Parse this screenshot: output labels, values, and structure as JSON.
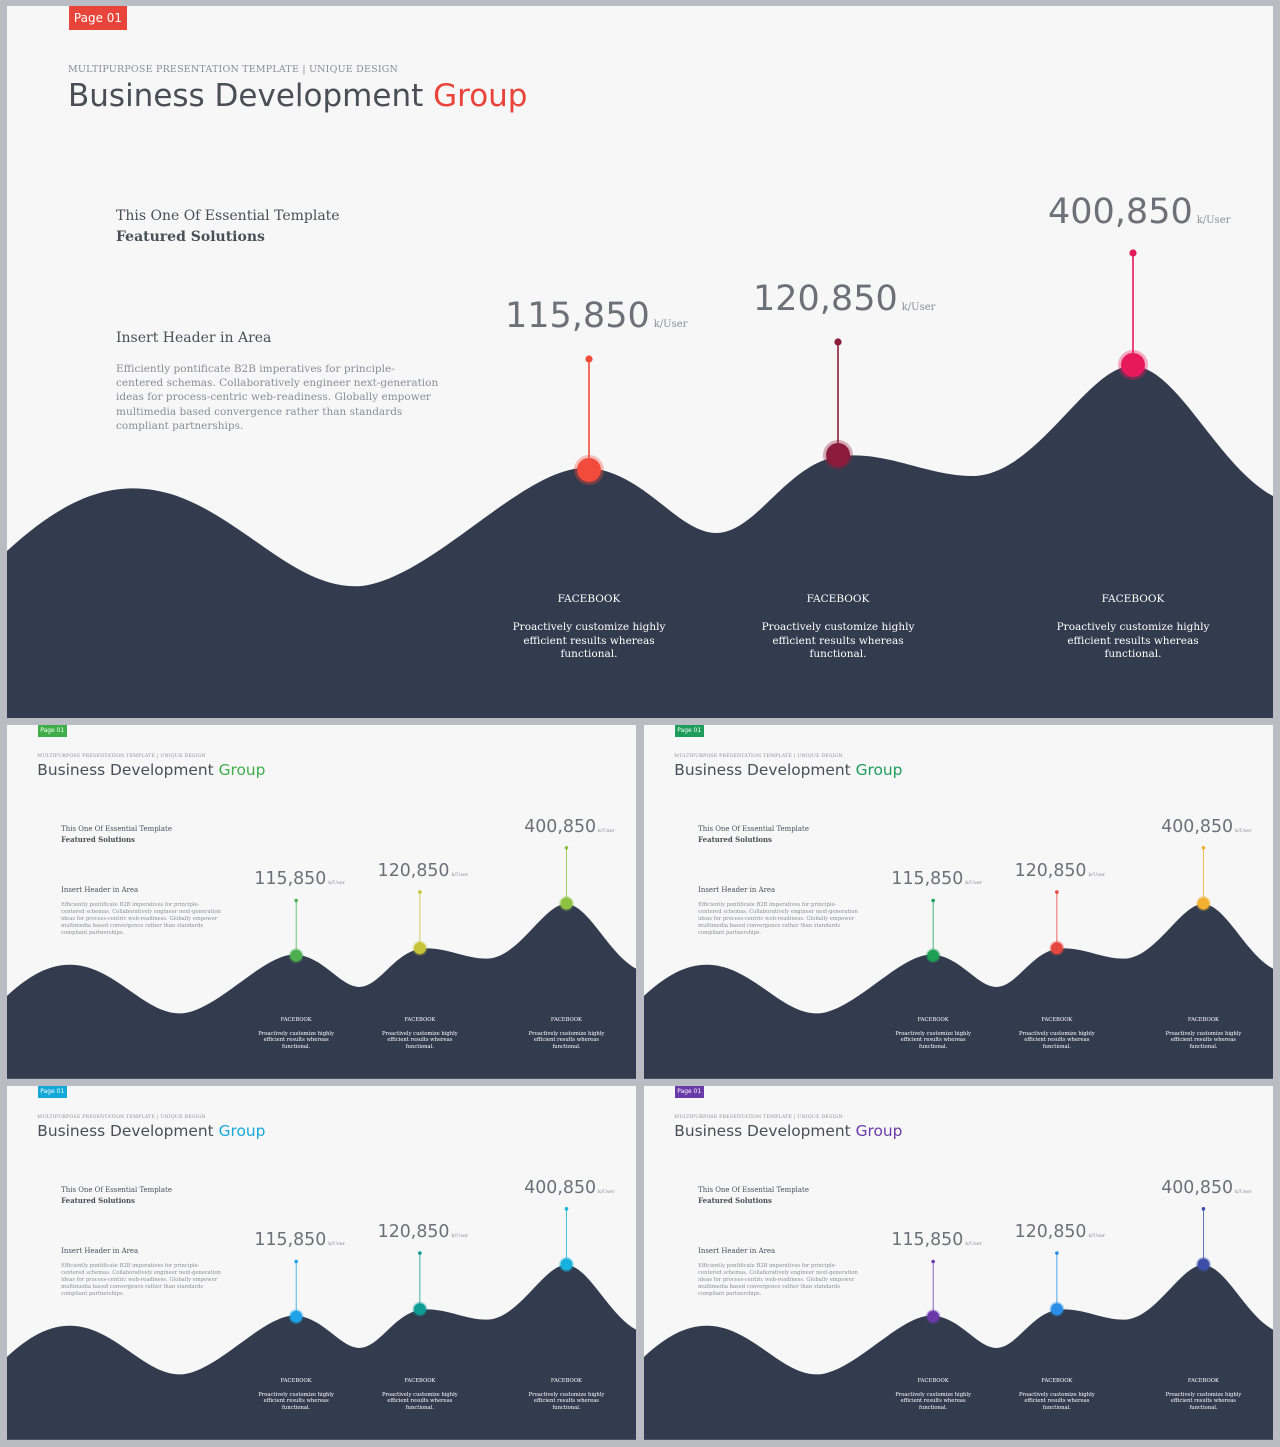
{
  "slides": [
    {
      "page_label": "Page 01",
      "subtitle": "MULTIPURPOSE PRESENTATION TEMPLATE | UNIQUE DESIGN",
      "title_main": "Business Development",
      "title_accent": "Group",
      "intro_line1": "This One Of Essential  Template",
      "intro_line2": "Featured Solutions",
      "insert_header": "Insert Header  in Area",
      "body": "Efficiently pontificate B2B imperatives for principle-centered schemas. Collaboratively engineer next-generation ideas for process-centric web-readiness. Globally empower multimedia based convergence rather than standards compliant partnerships.",
      "accent_color": "#e8443a",
      "marker_colors": [
        "#f24a3b",
        "#8c1c3c",
        "#e8185c"
      ],
      "stats": [
        {
          "value": "115,850",
          "unit": "k/User",
          "label": "FACEBOOK",
          "desc": "Proactively customize highly efficient results whereas functional."
        },
        {
          "value": "120,850",
          "unit": "k/User",
          "label": "FACEBOOK",
          "desc": "Proactively customize highly efficient results whereas functional."
        },
        {
          "value": "400,850",
          "unit": "k/User",
          "label": "FACEBOOK",
          "desc": "Proactively customize highly efficient results whereas functional."
        }
      ]
    },
    {
      "page_label": "Page 01",
      "subtitle": "MULTIPURPOSE PRESENTATION TEMPLATE | UNIQUE DESIGN",
      "title_main": "Business Development",
      "title_accent": "Group",
      "intro_line1": "This One Of Essential  Template",
      "intro_line2": "Featured Solutions",
      "insert_header": "Insert Header  in Area",
      "body": "Efficiently pontificate B2B imperatives for principle-centered schemas. Collaboratively engineer next-generation ideas for process-centric web-readiness. Globally empower multimedia based convergence rather than standards compliant partnerships.",
      "accent_color": "#3fae49",
      "marker_colors": [
        "#4cb050",
        "#c8c43a",
        "#8cc23f"
      ],
      "stats": [
        {
          "value": "115,850",
          "unit": "k/User",
          "label": "FACEBOOK",
          "desc": "Proactively customize highly efficient results whereas functional."
        },
        {
          "value": "120,850",
          "unit": "k/User",
          "label": "FACEBOOK",
          "desc": "Proactively customize highly efficient results whereas functional."
        },
        {
          "value": "400,850",
          "unit": "k/User",
          "label": "FACEBOOK",
          "desc": "Proactively customize highly efficient results whereas functional."
        }
      ]
    },
    {
      "page_label": "Page 01",
      "subtitle": "MULTIPURPOSE PRESENTATION TEMPLATE | UNIQUE DESIGN",
      "title_main": "Business Development",
      "title_accent": "Group",
      "intro_line1": "This One Of Essential  Template",
      "intro_line2": "Featured Solutions",
      "insert_header": "Insert Header  in Area",
      "body": "Efficiently pontificate B2B imperatives for principle-centered schemas. Collaboratively engineer next-generation ideas for process-centric web-readiness. Globally empower multimedia based convergence rather than standards compliant partnerships.",
      "accent_color": "#1e9d5a",
      "marker_colors": [
        "#1f9e56",
        "#e5463f",
        "#f0b131"
      ],
      "stats": [
        {
          "value": "115,850",
          "unit": "k/User",
          "label": "FACEBOOK",
          "desc": "Proactively customize highly efficient results whereas functional."
        },
        {
          "value": "120,850",
          "unit": "k/User",
          "label": "FACEBOOK",
          "desc": "Proactively customize highly efficient results whereas functional."
        },
        {
          "value": "400,850",
          "unit": "k/User",
          "label": "FACEBOOK",
          "desc": "Proactively customize highly efficient results whereas functional."
        }
      ]
    },
    {
      "page_label": "Page 01",
      "subtitle": "MULTIPURPOSE PRESENTATION TEMPLATE | UNIQUE DESIGN",
      "title_main": "Business Development",
      "title_accent": "Group",
      "intro_line1": "This One Of Essential  Template",
      "intro_line2": "Featured Solutions",
      "insert_header": "Insert Header  in Area",
      "body": "Efficiently pontificate B2B imperatives for principle-centered schemas. Collaboratively engineer next-generation ideas for process-centric web-readiness. Globally empower multimedia based convergence rather than standards compliant partnerships.",
      "accent_color": "#14a8d8",
      "marker_colors": [
        "#1ea2e8",
        "#0f9c95",
        "#16b1dd"
      ],
      "stats": [
        {
          "value": "115,850",
          "unit": "k/User",
          "label": "FACEBOOK",
          "desc": "Proactively customize highly efficient results whereas functional."
        },
        {
          "value": "120,850",
          "unit": "k/User",
          "label": "FACEBOOK",
          "desc": "Proactively customize highly efficient results whereas functional."
        },
        {
          "value": "400,850",
          "unit": "k/User",
          "label": "FACEBOOK",
          "desc": "Proactively customize highly efficient results whereas functional."
        }
      ]
    },
    {
      "page_label": "Page 01",
      "subtitle": "MULTIPURPOSE PRESENTATION TEMPLATE | UNIQUE DESIGN",
      "title_main": "Business Development",
      "title_accent": "Group",
      "intro_line1": "This One Of Essential  Template",
      "intro_line2": "Featured Solutions",
      "insert_header": "Insert Header  in Area",
      "body": "Efficiently pontificate B2B imperatives for principle-centered schemas. Collaboratively engineer next-generation ideas for process-centric web-readiness. Globally empower multimedia based convergence rather than standards compliant partnerships.",
      "accent_color": "#6a3aa8",
      "marker_colors": [
        "#6b3aa8",
        "#2a8ee6",
        "#3b4fa8"
      ],
      "stats": [
        {
          "value": "115,850",
          "unit": "k/User",
          "label": "FACEBOOK",
          "desc": "Proactively customize highly efficient results whereas functional."
        },
        {
          "value": "120,850",
          "unit": "k/User",
          "label": "FACEBOOK",
          "desc": "Proactively customize highly efficient results whereas functional."
        },
        {
          "value": "400,850",
          "unit": "k/User",
          "label": "FACEBOOK",
          "desc": "Proactively customize highly efficient results whereas functional."
        }
      ]
    }
  ]
}
